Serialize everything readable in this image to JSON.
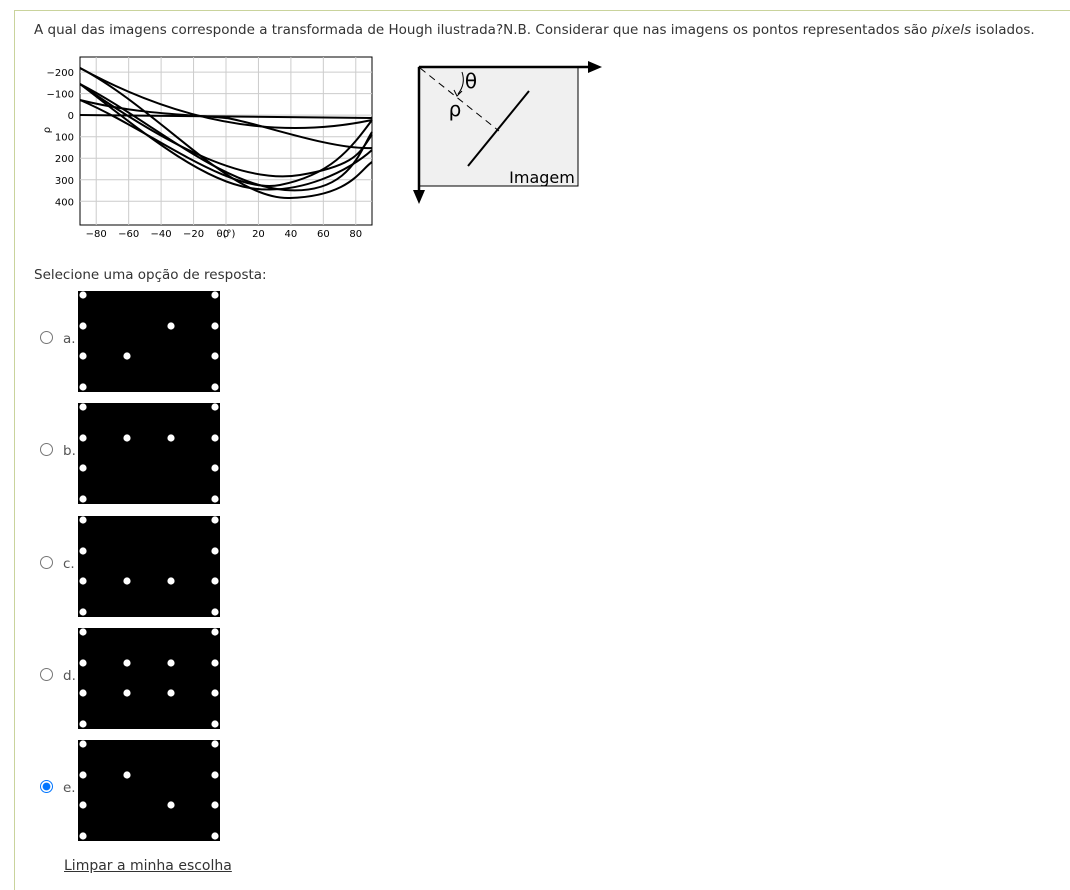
{
  "question": {
    "text_before": "A qual das imagens corresponde a transformada de Hough ilustrada?N.B. Considerar que nas imagens os pontos representados são ",
    "text_italic": "pixels",
    "text_after": " isolados."
  },
  "hough_plot": {
    "xlabel": "θ(°)",
    "ylabel": "ρ",
    "xlim": [
      -90,
      90
    ],
    "ylim": [
      -270,
      510
    ],
    "xticks": [
      {
        "value": -80,
        "label": "−80"
      },
      {
        "value": -60,
        "label": "−60"
      },
      {
        "value": -40,
        "label": "−40"
      },
      {
        "value": -20,
        "label": "−20"
      },
      0,
      20,
      40,
      60,
      80
    ],
    "yticks": [
      {
        "value": -200,
        "label": "−200"
      },
      {
        "value": -100,
        "label": "−100"
      },
      0,
      100,
      200,
      300,
      400
    ]
  },
  "diagram": {
    "theta": "θ",
    "rho": "ρ",
    "image_label": "Imagem"
  },
  "prompt": "Selecione uma opção de resposta:",
  "options": [
    {
      "label": "a.",
      "checked": false
    },
    {
      "label": "b.",
      "checked": false
    },
    {
      "label": "c.",
      "checked": false
    },
    {
      "label": "d.",
      "checked": false
    },
    {
      "label": "e.",
      "checked": true
    }
  ],
  "clear_link": "Limpar a minha escolha"
}
